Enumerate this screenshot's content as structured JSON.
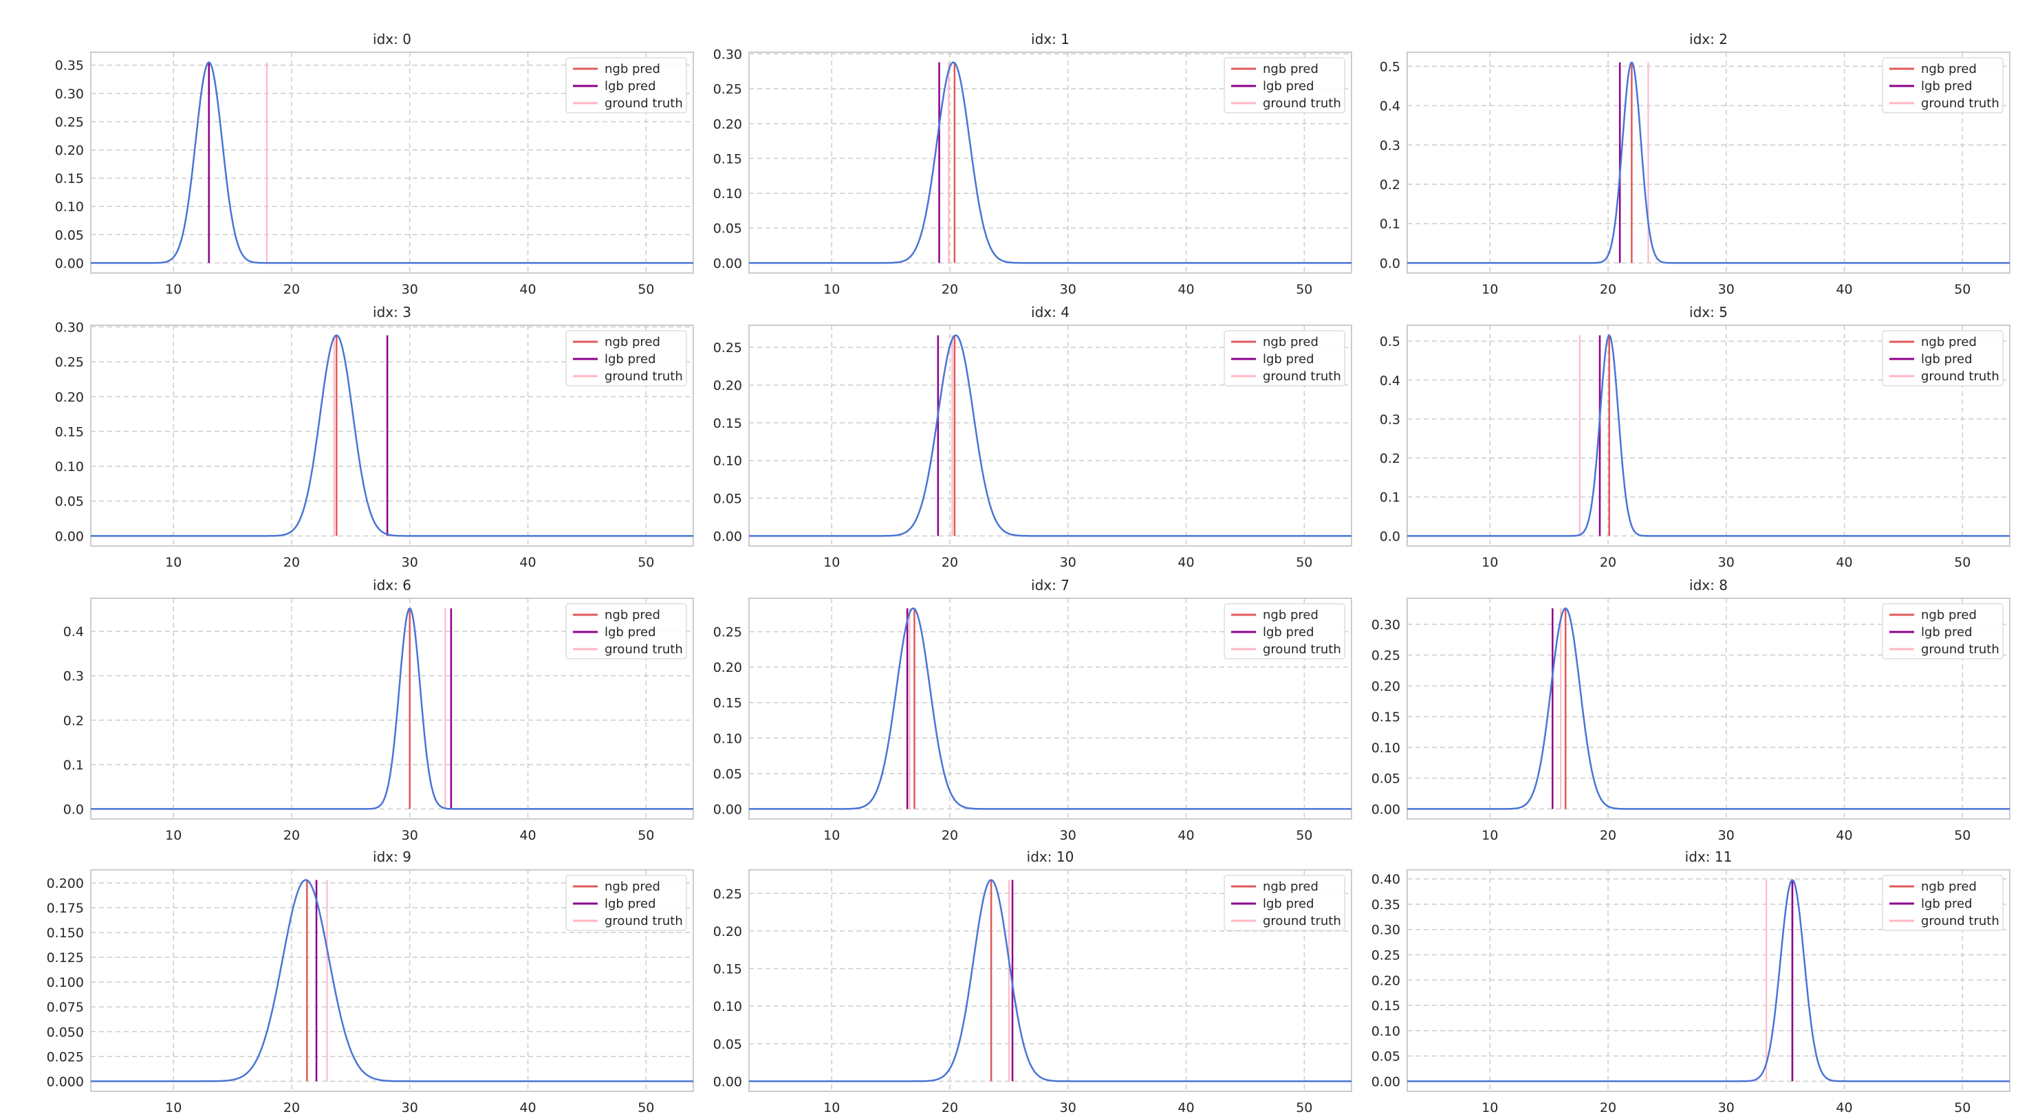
{
  "chart_data": {
    "type": "line",
    "xlim": [
      3,
      54
    ],
    "x_ticks": [
      10,
      20,
      30,
      40,
      50
    ],
    "legend": {
      "placement": "top-right",
      "entries": [
        "ngb pred",
        "lgb pred",
        "ground truth"
      ]
    },
    "colors": {
      "pdf": "#4a74d6",
      "ngb pred": "#e05a5a",
      "lgb pred": "#8b008b",
      "ground truth": "#ffb6c1",
      "grid": "#cccccc"
    },
    "grid": true,
    "panels": [
      {
        "title": "idx: 0",
        "mean": 13.0,
        "peak": 0.355,
        "ngb": 13.0,
        "lgb": 13.0,
        "gt": 17.9,
        "yticks": [
          "0.00",
          "0.05",
          "0.10",
          "0.15",
          "0.20",
          "0.25",
          "0.30",
          "0.35"
        ],
        "ystep": 0.05
      },
      {
        "title": "idx: 1",
        "mean": 20.3,
        "peak": 0.288,
        "ngb": 20.4,
        "lgb": 19.1,
        "gt": 19.9,
        "yticks": [
          "0.00",
          "0.05",
          "0.10",
          "0.15",
          "0.20",
          "0.25",
          "0.30"
        ],
        "ystep": 0.05
      },
      {
        "title": "idx: 2",
        "mean": 22.0,
        "peak": 0.51,
        "ngb": 22.0,
        "lgb": 21.0,
        "gt": 23.4,
        "yticks": [
          "0.0",
          "0.1",
          "0.2",
          "0.3",
          "0.4",
          "0.5"
        ],
        "ystep": 0.1
      },
      {
        "title": "idx: 3",
        "mean": 23.8,
        "peak": 0.288,
        "ngb": 23.8,
        "lgb": 28.1,
        "gt": 23.6,
        "yticks": [
          "0.00",
          "0.05",
          "0.10",
          "0.15",
          "0.20",
          "0.25",
          "0.30"
        ],
        "ystep": 0.05
      },
      {
        "title": "idx: 4",
        "mean": 20.5,
        "peak": 0.266,
        "ngb": 20.4,
        "lgb": 19.0,
        "gt": 20.2,
        "yticks": [
          "0.00",
          "0.05",
          "0.10",
          "0.15",
          "0.20",
          "0.25"
        ],
        "ystep": 0.05
      },
      {
        "title": "idx: 5",
        "mean": 20.1,
        "peak": 0.515,
        "ngb": 20.1,
        "lgb": 19.3,
        "gt": 17.6,
        "yticks": [
          "0.0",
          "0.1",
          "0.2",
          "0.3",
          "0.4",
          "0.5"
        ],
        "ystep": 0.1
      },
      {
        "title": "idx: 6",
        "mean": 30.0,
        "peak": 0.452,
        "ngb": 30.0,
        "lgb": 33.5,
        "gt": 33.0,
        "yticks": [
          "0.0",
          "0.1",
          "0.2",
          "0.3",
          "0.4"
        ],
        "ystep": 0.1
      },
      {
        "title": "idx: 7",
        "mean": 16.9,
        "peak": 0.283,
        "ngb": 17.0,
        "lgb": 16.4,
        "gt": 16.6,
        "yticks": [
          "0.00",
          "0.05",
          "0.10",
          "0.15",
          "0.20",
          "0.25"
        ],
        "ystep": 0.05
      },
      {
        "title": "idx: 8",
        "mean": 16.4,
        "peak": 0.326,
        "ngb": 16.4,
        "lgb": 15.3,
        "gt": 16.0,
        "yticks": [
          "0.00",
          "0.05",
          "0.10",
          "0.15",
          "0.20",
          "0.25",
          "0.30"
        ],
        "ystep": 0.05
      },
      {
        "title": "idx: 9",
        "mean": 21.2,
        "peak": 0.203,
        "ngb": 21.3,
        "lgb": 22.1,
        "gt": 23.0,
        "yticks": [
          "0.000",
          "0.025",
          "0.050",
          "0.075",
          "0.100",
          "0.125",
          "0.150",
          "0.175",
          "0.200"
        ],
        "ystep": 0.025
      },
      {
        "title": "idx: 10",
        "mean": 23.5,
        "peak": 0.268,
        "ngb": 23.5,
        "lgb": 25.3,
        "gt": 25.0,
        "yticks": [
          "0.00",
          "0.05",
          "0.10",
          "0.15",
          "0.20",
          "0.25"
        ],
        "ystep": 0.05
      },
      {
        "title": "idx: 11",
        "mean": 35.6,
        "peak": 0.398,
        "ngb": 35.6,
        "lgb": 35.6,
        "gt": 33.4,
        "yticks": [
          "0.00",
          "0.05",
          "0.10",
          "0.15",
          "0.20",
          "0.25",
          "0.30",
          "0.35",
          "0.40"
        ],
        "ystep": 0.05
      }
    ]
  }
}
